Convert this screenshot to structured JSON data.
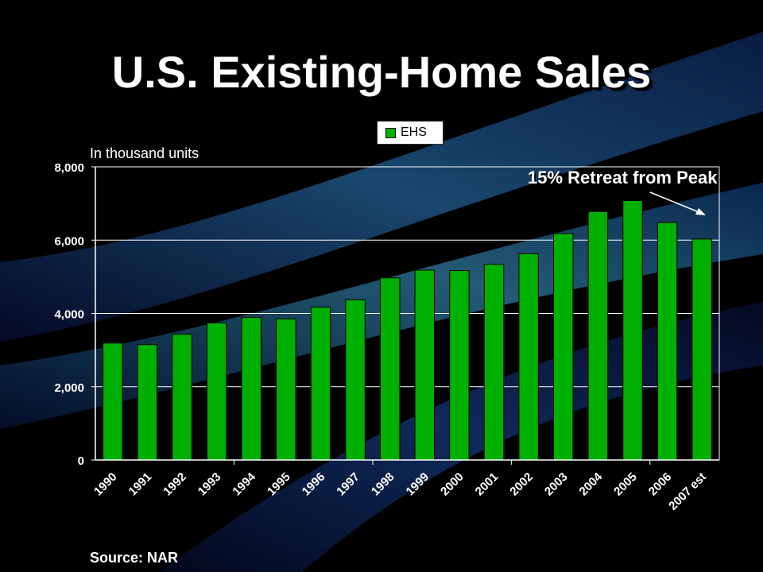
{
  "title": "U.S. Existing-Home Sales",
  "subtitle": "In thousand units",
  "source": "Source: NAR",
  "annotation": "15% Retreat from Peak",
  "colors": {
    "bar": "#00b000",
    "grid": "#ffffff",
    "background": "#000000"
  },
  "chart_data": {
    "type": "bar",
    "title": "U.S. Existing-Home Sales",
    "ylabel": "In thousand units",
    "ylim": [
      0,
      8000
    ],
    "yticks": [
      "0",
      "2,000",
      "4,000",
      "6,000",
      "8,000"
    ],
    "grid": true,
    "legend_position": "top-center",
    "categories": [
      "1990",
      "1991",
      "1992",
      "1993",
      "1994",
      "1995",
      "1996",
      "1997",
      "1998",
      "1999",
      "2000",
      "2001",
      "2002",
      "2003",
      "2004",
      "2005",
      "2006",
      "2007 est"
    ],
    "series": [
      {
        "name": "EHS",
        "values": [
          3190,
          3150,
          3430,
          3740,
          3890,
          3850,
          4170,
          4370,
          4970,
          5180,
          5170,
          5340,
          5630,
          6180,
          6780,
          7080,
          6480,
          6030
        ]
      }
    ]
  }
}
